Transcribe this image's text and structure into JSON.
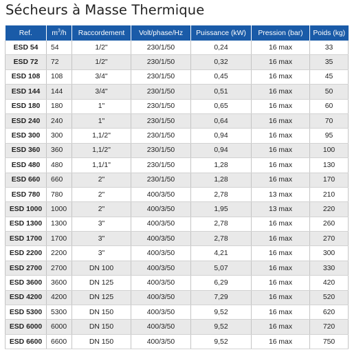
{
  "title": "Sécheurs à Masse Thermique",
  "columns": {
    "ref": "Ref.",
    "flow_unit": "m",
    "flow_exp": "3",
    "flow_suffix": "/h",
    "connection": "Raccordement",
    "voltage": "Volt/phase/Hz",
    "power": "Puissance (kW)",
    "pressure": "Pression (bar)",
    "weight": "Poids (kg)"
  },
  "rows": [
    {
      "ref": "ESD 54",
      "flow": "54",
      "connection": "1/2\"",
      "voltage": "230/1/50",
      "power": "0,24",
      "pressure": "16 max",
      "weight": "33"
    },
    {
      "ref": "ESD 72",
      "flow": "72",
      "connection": "1/2\"",
      "voltage": "230/1/50",
      "power": "0,32",
      "pressure": "16 max",
      "weight": "35"
    },
    {
      "ref": "ESD 108",
      "flow": "108",
      "connection": "3/4\"",
      "voltage": "230/1/50",
      "power": "0,45",
      "pressure": "16 max",
      "weight": "45"
    },
    {
      "ref": "ESD 144",
      "flow": "144",
      "connection": "3/4\"",
      "voltage": "230/1/50",
      "power": "0,51",
      "pressure": "16 max",
      "weight": "50"
    },
    {
      "ref": "ESD 180",
      "flow": "180",
      "connection": "1\"",
      "voltage": "230/1/50",
      "power": "0,65",
      "pressure": "16 max",
      "weight": "60"
    },
    {
      "ref": "ESD 240",
      "flow": "240",
      "connection": "1\"",
      "voltage": "230/1/50",
      "power": "0,64",
      "pressure": "16 max",
      "weight": "70"
    },
    {
      "ref": "ESD 300",
      "flow": "300",
      "connection": "1,1/2\"",
      "voltage": "230/1/50",
      "power": "0,94",
      "pressure": "16 max",
      "weight": "95"
    },
    {
      "ref": "ESD 360",
      "flow": "360",
      "connection": "1,1/2\"",
      "voltage": "230/1/50",
      "power": "0,94",
      "pressure": "16 max",
      "weight": "100"
    },
    {
      "ref": "ESD 480",
      "flow": "480",
      "connection": "1,1/1\"",
      "voltage": "230/1/50",
      "power": "1,28",
      "pressure": "16 max",
      "weight": "130"
    },
    {
      "ref": "ESD 660",
      "flow": "660",
      "connection": "2\"",
      "voltage": "230/1/50",
      "power": "1,28",
      "pressure": "16 max",
      "weight": "170"
    },
    {
      "ref": "ESD 780",
      "flow": "780",
      "connection": "2\"",
      "voltage": "400/3/50",
      "power": "2,78",
      "pressure": "13 max",
      "weight": "210"
    },
    {
      "ref": "ESD 1000",
      "flow": "1000",
      "connection": "2\"",
      "voltage": "400/3/50",
      "power": "1,95",
      "pressure": "13 max",
      "weight": "220"
    },
    {
      "ref": "ESD 1300",
      "flow": "1300",
      "connection": "3\"",
      "voltage": "400/3/50",
      "power": "2,78",
      "pressure": "16 max",
      "weight": "260"
    },
    {
      "ref": "ESD 1700",
      "flow": "1700",
      "connection": "3\"",
      "voltage": "400/3/50",
      "power": "2,78",
      "pressure": "16 max",
      "weight": "270"
    },
    {
      "ref": "ESD 2200",
      "flow": "2200",
      "connection": "3\"",
      "voltage": "400/3/50",
      "power": "4,21",
      "pressure": "16 max",
      "weight": "300"
    },
    {
      "ref": "ESD 2700",
      "flow": "2700",
      "connection": "DN 100",
      "voltage": "400/3/50",
      "power": "5,07",
      "pressure": "16 max",
      "weight": "330"
    },
    {
      "ref": "ESD 3600",
      "flow": "3600",
      "connection": "DN 125",
      "voltage": "400/3/50",
      "power": "6,29",
      "pressure": "16 max",
      "weight": "420"
    },
    {
      "ref": "ESD 4200",
      "flow": "4200",
      "connection": "DN 125",
      "voltage": "400/3/50",
      "power": "7,29",
      "pressure": "16 max",
      "weight": "520"
    },
    {
      "ref": "ESD 5300",
      "flow": "5300",
      "connection": "DN 150",
      "voltage": "400/3/50",
      "power": "9,52",
      "pressure": "16 max",
      "weight": "620"
    },
    {
      "ref": "ESD 6000",
      "flow": "6000",
      "connection": "DN 150",
      "voltage": "400/3/50",
      "power": "9,52",
      "pressure": "16 max",
      "weight": "720"
    },
    {
      "ref": "ESD 6600",
      "flow": "6600",
      "connection": "DN 150",
      "voltage": "400/3/50",
      "power": "9,52",
      "pressure": "16 max",
      "weight": "750"
    }
  ]
}
